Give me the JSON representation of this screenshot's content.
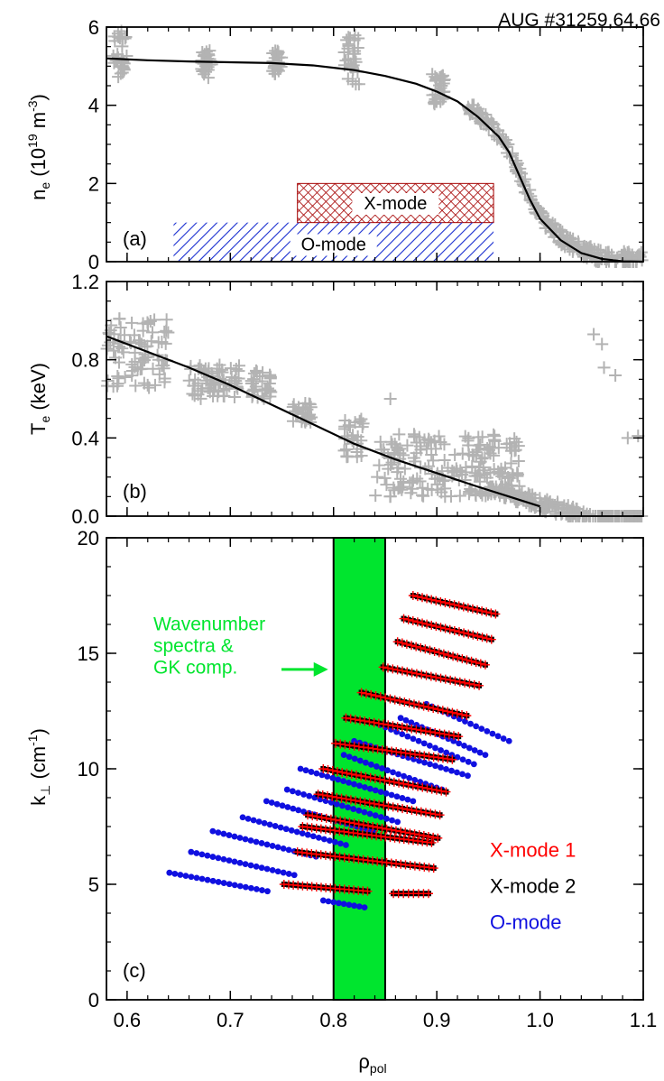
{
  "header": {
    "shot_label": "AUG #31259,64,66"
  },
  "chart_data": [
    {
      "panel": "a",
      "type": "scatter",
      "panel_label": "(a)",
      "ylabel_main": "n",
      "ylabel_sub": "e",
      "ylabel_open": " (10",
      "ylabel_exp1": "19",
      "ylabel_mid": " m",
      "ylabel_exp2": "-3",
      "ylabel_close": ")",
      "xlim": [
        0.58,
        1.1
      ],
      "ylim": [
        0,
        6
      ],
      "yticks": [
        0,
        2,
        4,
        6
      ],
      "fit_line": {
        "x": [
          0.58,
          0.62,
          0.66,
          0.7,
          0.74,
          0.78,
          0.82,
          0.85,
          0.88,
          0.9,
          0.92,
          0.94,
          0.96,
          0.97,
          0.98,
          0.99,
          1.0,
          1.02,
          1.04,
          1.06,
          1.08,
          1.1
        ],
        "y": [
          5.2,
          5.15,
          5.12,
          5.1,
          5.08,
          5.02,
          4.9,
          4.75,
          4.55,
          4.35,
          4.1,
          3.7,
          3.2,
          2.8,
          2.2,
          1.6,
          1.1,
          0.55,
          0.22,
          0.07,
          0.01,
          0.0
        ]
      },
      "scatter_clusters": [
        {
          "x": [
            0.585,
            0.6
          ],
          "y": [
            4.7,
            5.9
          ]
        },
        {
          "x": [
            0.672,
            0.682
          ],
          "y": [
            4.7,
            5.4
          ]
        },
        {
          "x": [
            0.74,
            0.75
          ],
          "y": [
            4.8,
            5.4
          ]
        },
        {
          "x": [
            0.81,
            0.825
          ],
          "y": [
            4.5,
            5.8
          ]
        },
        {
          "x": [
            0.895,
            0.91
          ],
          "y": [
            4.0,
            4.8
          ]
        },
        {
          "x": [
            0.93,
            1.1
          ],
          "y": [
            0.0,
            4.6
          ]
        }
      ],
      "ranges": [
        {
          "label": "X-mode",
          "x": [
            0.765,
            0.955
          ],
          "y": [
            1.0,
            2.0
          ],
          "pattern": "crosshatch",
          "color": "#cc0000"
        },
        {
          "label": "O-mode",
          "x": [
            0.645,
            0.955
          ],
          "y": [
            0.0,
            1.0
          ],
          "pattern": "diagonal",
          "color": "#1a2fd0"
        }
      ]
    },
    {
      "panel": "b",
      "type": "scatter",
      "panel_label": "(b)",
      "ylabel_main": "T",
      "ylabel_sub": "e",
      "ylabel_rest": " (keV)",
      "xlim": [
        0.58,
        1.1
      ],
      "ylim": [
        0.0,
        1.2
      ],
      "yticks": [
        0.0,
        0.4,
        0.8,
        1.2
      ],
      "ytick_labels": [
        "0.0",
        "0.4",
        "0.8",
        "1.2"
      ],
      "fit_line": {
        "x": [
          0.58,
          0.62,
          0.66,
          0.7,
          0.74,
          0.78,
          0.82,
          0.86,
          0.9,
          0.94,
          0.97,
          1.0
        ],
        "y": [
          0.92,
          0.84,
          0.76,
          0.67,
          0.57,
          0.47,
          0.37,
          0.29,
          0.22,
          0.15,
          0.1,
          0.05
        ]
      },
      "scatter_clusters": [
        {
          "x": [
            0.58,
            0.64
          ],
          "y": [
            0.65,
            1.02
          ]
        },
        {
          "x": [
            0.66,
            0.71
          ],
          "y": [
            0.6,
            0.78
          ]
        },
        {
          "x": [
            0.72,
            0.74
          ],
          "y": [
            0.6,
            0.75
          ]
        },
        {
          "x": [
            0.76,
            0.78
          ],
          "y": [
            0.48,
            0.58
          ]
        },
        {
          "x": [
            0.81,
            0.83
          ],
          "y": [
            0.3,
            0.5
          ]
        },
        {
          "x": [
            0.84,
            0.98
          ],
          "y": [
            0.1,
            0.42
          ]
        },
        {
          "x": [
            0.95,
            1.1
          ],
          "y": [
            0.0,
            0.15
          ]
        }
      ],
      "scatter_outliers": {
        "x": [
          1.052,
          1.06,
          1.073,
          1.062,
          1.085,
          1.095,
          0.96,
          0.945,
          0.925,
          0.855,
          0.905
        ],
        "y": [
          0.93,
          0.88,
          0.72,
          0.76,
          0.4,
          0.41,
          0.35,
          0.25,
          0.32,
          0.6,
          0.23
        ]
      }
    },
    {
      "panel": "c",
      "type": "scatter",
      "panel_label": "(c)",
      "ylabel_main": "k",
      "ylabel_sub": "⊥",
      "ylabel_open": " (cm",
      "ylabel_exp": "-1",
      "ylabel_close": ")",
      "xlabel_main": "ρ",
      "xlabel_sub": "pol",
      "xlim": [
        0.58,
        1.1
      ],
      "ylim": [
        0,
        20
      ],
      "xticks": [
        0.6,
        0.7,
        0.8,
        0.9,
        1.0,
        1.1
      ],
      "xtick_labels": [
        "0.6",
        "0.7",
        "0.8",
        "0.9",
        "1.0",
        "1.1"
      ],
      "yticks": [
        0,
        5,
        10,
        15,
        20
      ],
      "band": {
        "x": [
          0.8,
          0.85
        ],
        "color": "#00e52e"
      },
      "annotation": {
        "lines": [
          "Wavenumber",
          "spectra &",
          "GK comp."
        ],
        "color": "#00e52e",
        "arrow_to": [
          0.8,
          14.3
        ]
      },
      "legend": {
        "placement": "bottom-right",
        "entries": [
          {
            "label": "X-mode 1",
            "color": "#ff0000"
          },
          {
            "label": "X-mode 2",
            "color": "#000000"
          },
          {
            "label": "O-mode",
            "color": "#1010e0"
          }
        ]
      },
      "series": [
        {
          "name": "X-mode 1",
          "segments": [
            {
              "x0": 0.877,
              "x1": 0.957,
              "y0": 17.5,
              "y1": 16.7
            },
            {
              "x0": 0.868,
              "x1": 0.953,
              "y0": 16.5,
              "y1": 15.6
            },
            {
              "x0": 0.862,
              "x1": 0.947,
              "y0": 15.5,
              "y1": 14.5
            },
            {
              "x0": 0.848,
              "x1": 0.941,
              "y0": 14.4,
              "y1": 13.6
            },
            {
              "x0": 0.827,
              "x1": 0.929,
              "y0": 13.3,
              "y1": 12.3
            },
            {
              "x0": 0.812,
              "x1": 0.921,
              "y0": 12.2,
              "y1": 11.4
            },
            {
              "x0": 0.802,
              "x1": 0.915,
              "y0": 11.1,
              "y1": 10.4
            },
            {
              "x0": 0.79,
              "x1": 0.909,
              "y0": 10.0,
              "y1": 9.0
            },
            {
              "x0": 0.785,
              "x1": 0.903,
              "y0": 8.9,
              "y1": 8.0
            },
            {
              "x0": 0.775,
              "x1": 0.901,
              "y0": 8.0,
              "y1": 7.0
            },
            {
              "x0": 0.77,
              "x1": 0.895,
              "y0": 7.5,
              "y1": 6.8
            },
            {
              "x0": 0.765,
              "x1": 0.897,
              "y0": 6.4,
              "y1": 5.7
            },
            {
              "x0": 0.752,
              "x1": 0.833,
              "y0": 5.0,
              "y1": 4.7
            },
            {
              "x0": 0.858,
              "x1": 0.892,
              "y0": 4.6,
              "y1": 4.6
            }
          ]
        },
        {
          "name": "X-mode 2",
          "segments": [
            {
              "x0": 0.877,
              "x1": 0.957,
              "y0": 17.5,
              "y1": 16.7
            },
            {
              "x0": 0.868,
              "x1": 0.953,
              "y0": 16.5,
              "y1": 15.6
            },
            {
              "x0": 0.862,
              "x1": 0.947,
              "y0": 15.5,
              "y1": 14.5
            },
            {
              "x0": 0.848,
              "x1": 0.941,
              "y0": 14.4,
              "y1": 13.6
            },
            {
              "x0": 0.827,
              "x1": 0.929,
              "y0": 13.3,
              "y1": 12.3
            },
            {
              "x0": 0.812,
              "x1": 0.921,
              "y0": 12.2,
              "y1": 11.4
            },
            {
              "x0": 0.802,
              "x1": 0.915,
              "y0": 11.1,
              "y1": 10.4
            },
            {
              "x0": 0.79,
              "x1": 0.909,
              "y0": 10.0,
              "y1": 9.0
            },
            {
              "x0": 0.785,
              "x1": 0.903,
              "y0": 8.9,
              "y1": 8.0
            },
            {
              "x0": 0.775,
              "x1": 0.901,
              "y0": 8.0,
              "y1": 7.0
            },
            {
              "x0": 0.77,
              "x1": 0.895,
              "y0": 7.5,
              "y1": 6.8
            },
            {
              "x0": 0.765,
              "x1": 0.897,
              "y0": 6.4,
              "y1": 5.7
            },
            {
              "x0": 0.752,
              "x1": 0.833,
              "y0": 5.0,
              "y1": 4.7
            },
            {
              "x0": 0.858,
              "x1": 0.892,
              "y0": 4.6,
              "y1": 4.6
            }
          ]
        },
        {
          "name": "O-mode",
          "segments": [
            {
              "x0": 0.641,
              "x1": 0.736,
              "y0": 5.5,
              "y1": 4.7
            },
            {
              "x0": 0.662,
              "x1": 0.762,
              "y0": 6.4,
              "y1": 5.4
            },
            {
              "x0": 0.683,
              "x1": 0.783,
              "y0": 7.3,
              "y1": 6.2
            },
            {
              "x0": 0.712,
              "x1": 0.812,
              "y0": 7.9,
              "y1": 6.7
            },
            {
              "x0": 0.735,
              "x1": 0.838,
              "y0": 8.6,
              "y1": 7.3
            },
            {
              "x0": 0.755,
              "x1": 0.862,
              "y0": 9.1,
              "y1": 7.7
            },
            {
              "x0": 0.768,
              "x1": 0.877,
              "y0": 10.0,
              "y1": 8.6
            },
            {
              "x0": 0.81,
              "x1": 0.905,
              "y0": 10.6,
              "y1": 9.1
            },
            {
              "x0": 0.82,
              "x1": 0.93,
              "y0": 11.2,
              "y1": 9.7
            },
            {
              "x0": 0.845,
              "x1": 0.936,
              "y0": 11.9,
              "y1": 10.2
            },
            {
              "x0": 0.865,
              "x1": 0.947,
              "y0": 12.2,
              "y1": 10.6
            },
            {
              "x0": 0.89,
              "x1": 0.97,
              "y0": 12.8,
              "y1": 11.2
            },
            {
              "x0": 0.79,
              "x1": 0.83,
              "y0": 4.3,
              "y1": 4.0
            }
          ]
        }
      ]
    }
  ]
}
